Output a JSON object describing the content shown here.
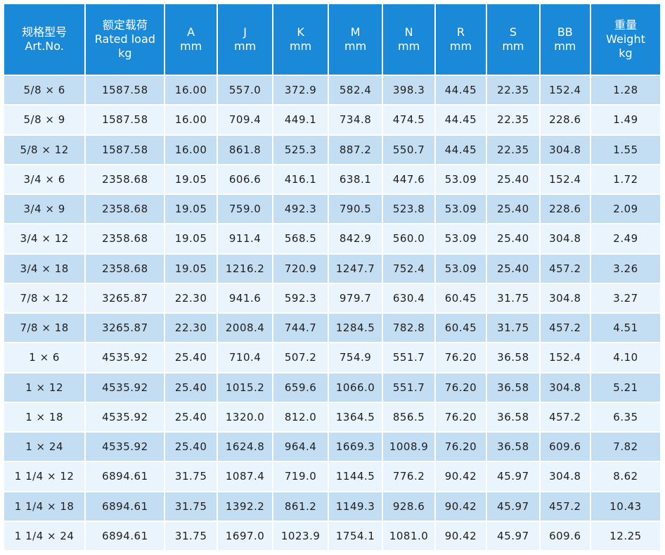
{
  "columns": [
    {
      "line1": "规格型号",
      "line2": "Art.No.",
      "line3": ""
    },
    {
      "line1": "额定载荷",
      "line2": "Rated load",
      "line3": "kg"
    },
    {
      "line1": "A",
      "line2": "mm",
      "line3": ""
    },
    {
      "line1": "J",
      "line2": "mm",
      "line3": ""
    },
    {
      "line1": "K",
      "line2": "mm",
      "line3": ""
    },
    {
      "line1": "M",
      "line2": "mm",
      "line3": ""
    },
    {
      "line1": "N",
      "line2": "mm",
      "line3": ""
    },
    {
      "line1": "R",
      "line2": "mm",
      "line3": ""
    },
    {
      "line1": "S",
      "line2": "mm",
      "line3": ""
    },
    {
      "line1": "BB",
      "line2": "mm",
      "line3": ""
    },
    {
      "line1": "重量",
      "line2": "Weight",
      "line3": "kg"
    }
  ],
  "rows": [
    [
      "5/8 × 6",
      "1587.58",
      "16.00",
      "557.0",
      "372.9",
      "582.4",
      "398.3",
      "44.45",
      "22.35",
      "152.4",
      "1.28"
    ],
    [
      "5/8 × 9",
      "1587.58",
      "16.00",
      "709.4",
      "449.1",
      "734.8",
      "474.5",
      "44.45",
      "22.35",
      "228.6",
      "1.49"
    ],
    [
      "5/8 × 12",
      "1587.58",
      "16.00",
      "861.8",
      "525.3",
      "887.2",
      "550.7",
      "44.45",
      "22.35",
      "304.8",
      "1.55"
    ],
    [
      "3/4 × 6",
      "2358.68",
      "19.05",
      "606.6",
      "416.1",
      "638.1",
      "447.6",
      "53.09",
      "25.40",
      "152.4",
      "1.72"
    ],
    [
      "3/4 × 9",
      "2358.68",
      "19.05",
      "759.0",
      "492.3",
      "790.5",
      "523.8",
      "53.09",
      "25.40",
      "228.6",
      "2.09"
    ],
    [
      "3/4 × 12",
      "2358.68",
      "19.05",
      "911.4",
      "568.5",
      "842.9",
      "560.0",
      "53.09",
      "25.40",
      "304.8",
      "2.49"
    ],
    [
      "3/4 × 18",
      "2358.68",
      "19.05",
      "1216.2",
      "720.9",
      "1247.7",
      "752.4",
      "53.09",
      "25.40",
      "457.2",
      "3.26"
    ],
    [
      "7/8 × 12",
      "3265.87",
      "22.30",
      "941.6",
      "592.3",
      "979.7",
      "630.4",
      "60.45",
      "31.75",
      "304.8",
      "3.27"
    ],
    [
      "7/8 × 18",
      "3265.87",
      "22.30",
      "2008.4",
      "744.7",
      "1284.5",
      "782.8",
      "60.45",
      "31.75",
      "457.2",
      "4.51"
    ],
    [
      "1 × 6",
      "4535.92",
      "25.40",
      "710.4",
      "507.2",
      "754.9",
      "551.7",
      "76.20",
      "36.58",
      "152.4",
      "4.10"
    ],
    [
      "1 × 12",
      "4535.92",
      "25.40",
      "1015.2",
      "659.6",
      "1066.0",
      "551.7",
      "76.20",
      "36.58",
      "304.8",
      "5.21"
    ],
    [
      "1 × 18",
      "4535.92",
      "25.40",
      "1320.0",
      "812.0",
      "1364.5",
      "856.5",
      "76.20",
      "36.58",
      "457.2",
      "6.35"
    ],
    [
      "1 × 24",
      "4535.92",
      "25.40",
      "1624.8",
      "964.4",
      "1669.3",
      "1008.9",
      "76.20",
      "36.58",
      "609.6",
      "7.82"
    ],
    [
      "1 1/4 × 12",
      "6894.61",
      "31.75",
      "1087.4",
      "719.0",
      "1144.5",
      "776.2",
      "90.42",
      "45.97",
      "304.8",
      "8.62"
    ],
    [
      "1 1/4 × 18",
      "6894.61",
      "31.75",
      "1392.2",
      "861.2",
      "1149.3",
      "928.6",
      "90.42",
      "45.97",
      "457.2",
      "10.43"
    ],
    [
      "1 1/4 × 24",
      "6894.61",
      "31.75",
      "1697.0",
      "1023.9",
      "1754.1",
      "1081.0",
      "90.42",
      "45.97",
      "609.6",
      "12.25"
    ]
  ],
  "colors": {
    "header_bg": "#1a8ad8",
    "header_text": "#ffffff",
    "row_odd_bg": "#c3ddf3",
    "row_even_bg": "#eaf4fc",
    "cell_text": "#1e1e1e"
  }
}
